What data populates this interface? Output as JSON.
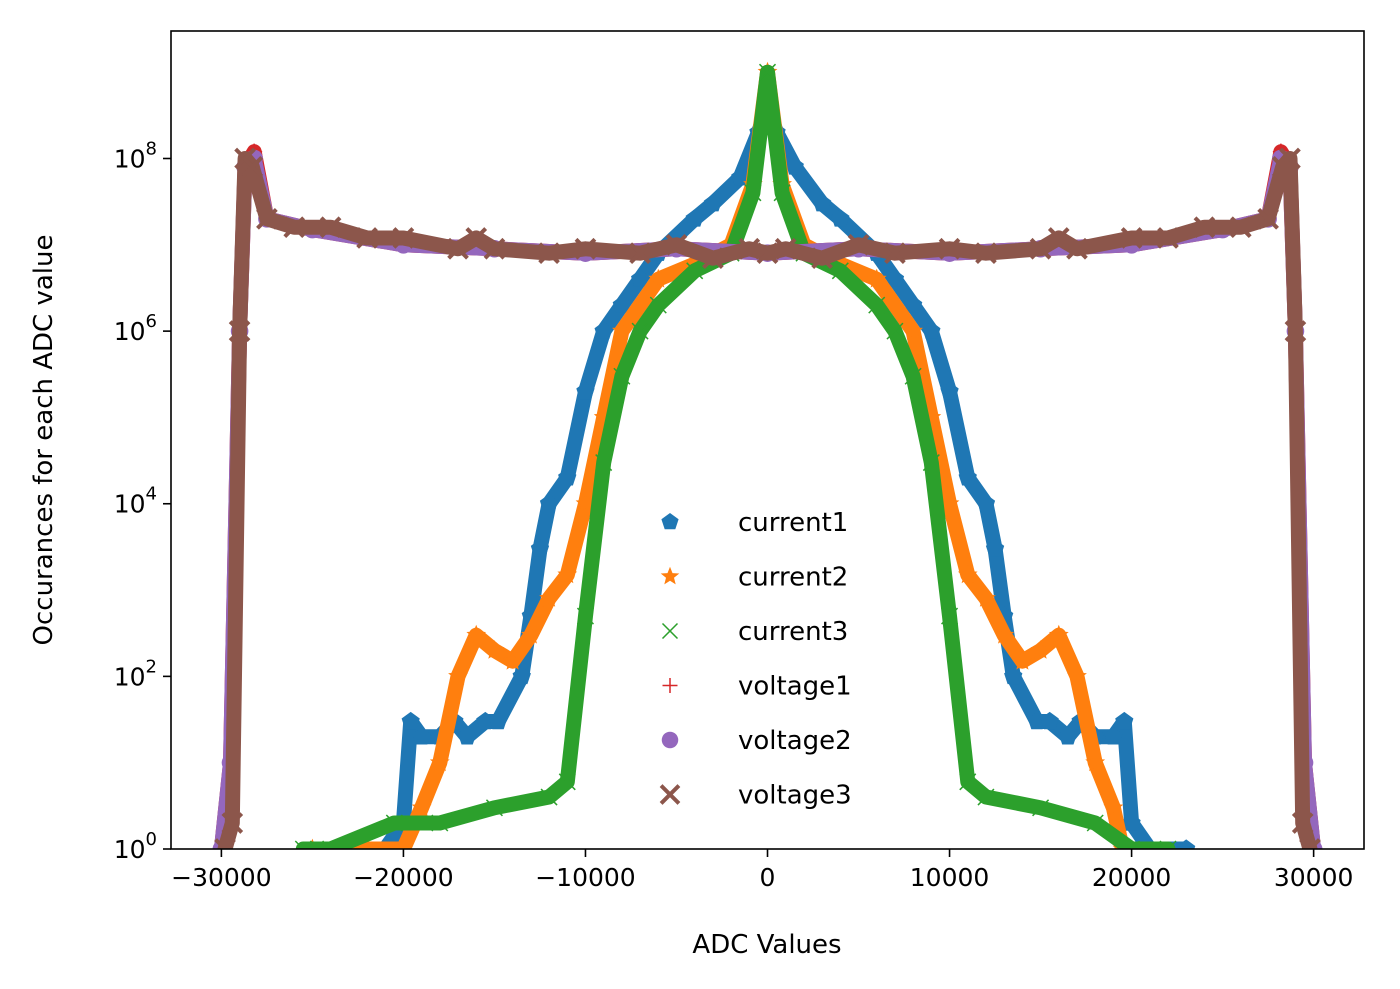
{
  "chart_data": {
    "type": "scatter",
    "title": "",
    "xlabel": "ADC Values",
    "ylabel": "Occurances for each ADC value",
    "xscale": "linear",
    "yscale": "log",
    "xlim": [
      -32768,
      32767
    ],
    "ylim": [
      1,
      3000000000
    ],
    "xticks": [
      -30000,
      -20000,
      -10000,
      0,
      10000,
      20000,
      30000
    ],
    "xtick_labels": [
      "−30000",
      "−20000",
      "−10000",
      "0",
      "10000",
      "20000",
      "30000"
    ],
    "yticks": [
      1,
      100,
      10000,
      1000000,
      100000000
    ],
    "ytick_labels": [
      {
        "base": "10",
        "exp": "0"
      },
      {
        "base": "10",
        "exp": "2"
      },
      {
        "base": "10",
        "exp": "4"
      },
      {
        "base": "10",
        "exp": "6"
      },
      {
        "base": "10",
        "exp": "8"
      }
    ],
    "grid": false,
    "legend_position": "lower-center",
    "series": [
      {
        "name": "current1",
        "marker": "pentagon",
        "color": "#1f77b4",
        "points": [
          [
            -21000,
            1
          ],
          [
            -20000,
            2
          ],
          [
            -19600,
            30
          ],
          [
            -19000,
            20
          ],
          [
            -18000,
            20
          ],
          [
            -17200,
            30
          ],
          [
            -16500,
            20
          ],
          [
            -15500,
            30
          ],
          [
            -14800,
            30
          ],
          [
            -13500,
            100
          ],
          [
            -13000,
            500
          ],
          [
            -12500,
            3000
          ],
          [
            -12000,
            10000
          ],
          [
            -11000,
            20000
          ],
          [
            -10000,
            200000
          ],
          [
            -9000,
            1000000
          ],
          [
            -8000,
            2000000
          ],
          [
            -7000,
            4000000
          ],
          [
            -6000,
            8000000
          ],
          [
            -4000,
            20000000
          ],
          [
            -3000,
            30000000
          ],
          [
            -1500,
            60000000
          ],
          [
            -500,
            200000000
          ],
          [
            0,
            400000000
          ],
          [
            500,
            200000000
          ],
          [
            1500,
            80000000
          ],
          [
            3000,
            30000000
          ],
          [
            4000,
            20000000
          ],
          [
            6000,
            8000000
          ],
          [
            7000,
            4000000
          ],
          [
            8000,
            2000000
          ],
          [
            9000,
            1000000
          ],
          [
            10000,
            200000
          ],
          [
            11000,
            20000
          ],
          [
            12000,
            10000
          ],
          [
            12500,
            3000
          ],
          [
            13000,
            500
          ],
          [
            13500,
            100
          ],
          [
            14800,
            30
          ],
          [
            15500,
            30
          ],
          [
            16500,
            20
          ],
          [
            17200,
            30
          ],
          [
            18000,
            20
          ],
          [
            19000,
            20
          ],
          [
            19600,
            30
          ],
          [
            20000,
            2
          ],
          [
            21000,
            1
          ],
          [
            23000,
            1
          ]
        ]
      },
      {
        "name": "current2",
        "marker": "star",
        "color": "#ff7f0e",
        "points": [
          [
            -25000,
            1
          ],
          [
            -23000,
            1
          ],
          [
            -20000,
            1
          ],
          [
            -19000,
            3
          ],
          [
            -18000,
            10
          ],
          [
            -17000,
            100
          ],
          [
            -16000,
            300
          ],
          [
            -15000,
            200
          ],
          [
            -14000,
            150
          ],
          [
            -13000,
            300
          ],
          [
            -12000,
            800
          ],
          [
            -11000,
            1500
          ],
          [
            -10000,
            10000
          ],
          [
            -9000,
            100000
          ],
          [
            -8000,
            1000000
          ],
          [
            -6000,
            4000000
          ],
          [
            -4000,
            6000000
          ],
          [
            -2000,
            10000000
          ],
          [
            -800,
            50000000
          ],
          [
            0,
            1000000000
          ],
          [
            800,
            50000000
          ],
          [
            2000,
            10000000
          ],
          [
            4000,
            6000000
          ],
          [
            6000,
            4000000
          ],
          [
            8000,
            1000000
          ],
          [
            9000,
            100000
          ],
          [
            10000,
            10000
          ],
          [
            11000,
            1500
          ],
          [
            12000,
            800
          ],
          [
            13000,
            300
          ],
          [
            14000,
            150
          ],
          [
            15000,
            200
          ],
          [
            16000,
            300
          ],
          [
            17000,
            100
          ],
          [
            18000,
            10
          ],
          [
            19000,
            3
          ],
          [
            19500,
            1
          ]
        ]
      },
      {
        "name": "current3",
        "marker": "x",
        "color": "#2ca02c",
        "points": [
          [
            -25500,
            1
          ],
          [
            -24000,
            1
          ],
          [
            -20500,
            2
          ],
          [
            -18000,
            2
          ],
          [
            -15000,
            3
          ],
          [
            -12000,
            4
          ],
          [
            -11000,
            6
          ],
          [
            -10000,
            500
          ],
          [
            -9000,
            30000
          ],
          [
            -8000,
            300000
          ],
          [
            -7000,
            1000000
          ],
          [
            -6000,
            2000000
          ],
          [
            -4000,
            5000000
          ],
          [
            -2000,
            8000000
          ],
          [
            -800,
            40000000
          ],
          [
            0,
            1000000000
          ],
          [
            800,
            40000000
          ],
          [
            2000,
            8000000
          ],
          [
            4000,
            5000000
          ],
          [
            6000,
            2000000
          ],
          [
            7000,
            1000000
          ],
          [
            8000,
            300000
          ],
          [
            9000,
            30000
          ],
          [
            10000,
            500
          ],
          [
            11000,
            6
          ],
          [
            12000,
            4
          ],
          [
            15000,
            3
          ],
          [
            18000,
            2
          ],
          [
            20000,
            1
          ],
          [
            22000,
            1
          ]
        ]
      },
      {
        "name": "voltage1",
        "marker": "plus",
        "color": "#d62728",
        "points": [
          [
            -30000,
            1
          ],
          [
            -29500,
            10
          ],
          [
            -29000,
            1000000
          ],
          [
            -28700,
            80000000
          ],
          [
            -28200,
            120000000
          ],
          [
            -27500,
            20000000
          ],
          [
            -25000,
            15000000
          ],
          [
            -20000,
            10000000
          ],
          [
            -15000,
            9000000
          ],
          [
            -10000,
            8000000
          ],
          [
            -5000,
            9000000
          ],
          [
            0,
            8000000
          ],
          [
            5000,
            9000000
          ],
          [
            10000,
            8000000
          ],
          [
            15000,
            9000000
          ],
          [
            20000,
            10000000
          ],
          [
            25000,
            15000000
          ],
          [
            27500,
            20000000
          ],
          [
            28200,
            120000000
          ],
          [
            28700,
            80000000
          ],
          [
            29000,
            1000000
          ],
          [
            29500,
            10
          ],
          [
            30000,
            1
          ]
        ]
      },
      {
        "name": "voltage2",
        "marker": "circle",
        "color": "#9467bd",
        "points": [
          [
            -30000,
            1
          ],
          [
            -29500,
            10
          ],
          [
            -29000,
            1000000
          ],
          [
            -28700,
            80000000
          ],
          [
            -28200,
            100000000
          ],
          [
            -27500,
            20000000
          ],
          [
            -25000,
            15000000
          ],
          [
            -20000,
            10000000
          ],
          [
            -15000,
            9000000
          ],
          [
            -10000,
            8000000
          ],
          [
            -5000,
            9000000
          ],
          [
            0,
            8000000
          ],
          [
            5000,
            9000000
          ],
          [
            10000,
            8000000
          ],
          [
            15000,
            9000000
          ],
          [
            20000,
            10000000
          ],
          [
            25000,
            15000000
          ],
          [
            27500,
            20000000
          ],
          [
            28200,
            100000000
          ],
          [
            28700,
            80000000
          ],
          [
            29000,
            1000000
          ],
          [
            29500,
            10
          ],
          [
            30000,
            1
          ]
        ]
      },
      {
        "name": "voltage3",
        "marker": "filled-x",
        "color": "#8c564b",
        "points": [
          [
            -29800,
            1
          ],
          [
            -29400,
            2
          ],
          [
            -29000,
            1000000
          ],
          [
            -28700,
            100000000
          ],
          [
            -28300,
            80000000
          ],
          [
            -27500,
            20000000
          ],
          [
            -26000,
            16000000
          ],
          [
            -24000,
            16000000
          ],
          [
            -22000,
            12000000
          ],
          [
            -20000,
            12000000
          ],
          [
            -17000,
            9000000
          ],
          [
            -16000,
            12000000
          ],
          [
            -15000,
            9000000
          ],
          [
            -12000,
            8000000
          ],
          [
            -10000,
            9000000
          ],
          [
            -7000,
            8000000
          ],
          [
            -5000,
            10000000
          ],
          [
            -3000,
            7000000
          ],
          [
            -1000,
            9000000
          ],
          [
            0,
            8000000
          ],
          [
            1000,
            9000000
          ],
          [
            3000,
            7000000
          ],
          [
            5000,
            10000000
          ],
          [
            7000,
            8000000
          ],
          [
            10000,
            9000000
          ],
          [
            12000,
            8000000
          ],
          [
            15000,
            9000000
          ],
          [
            16000,
            12000000
          ],
          [
            17000,
            9000000
          ],
          [
            20000,
            12000000
          ],
          [
            22000,
            12000000
          ],
          [
            24000,
            16000000
          ],
          [
            26000,
            16000000
          ],
          [
            27500,
            20000000
          ],
          [
            28300,
            80000000
          ],
          [
            28700,
            100000000
          ],
          [
            29000,
            1000000
          ],
          [
            29400,
            2
          ],
          [
            29800,
            1
          ]
        ]
      }
    ]
  }
}
